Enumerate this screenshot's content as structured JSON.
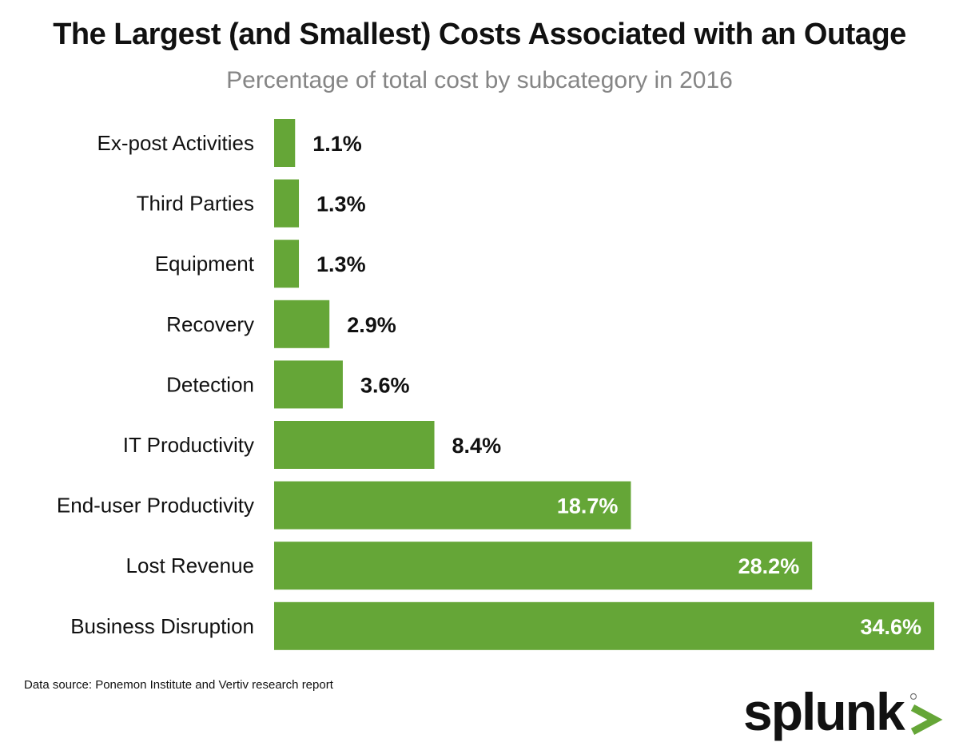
{
  "title": "The Largest (and Smallest) Costs Associated with an Outage",
  "subtitle": "Percentage of total cost by subcategory in 2016",
  "source": "Data source: Ponemon Institute and Vertiv research report",
  "logo": {
    "text": "splunk>",
    "brand_color": "#65a637"
  },
  "colors": {
    "bar": "#65a637",
    "label_outside": "#111111",
    "label_inside": "#ffffff"
  },
  "chart_data": {
    "type": "bar",
    "orientation": "horizontal",
    "title": "The Largest (and Smallest) Costs Associated with an Outage",
    "subtitle": "Percentage of total cost by subcategory in 2016",
    "categories": [
      "Ex-post Activities",
      "Third Parties",
      "Equipment",
      "Recovery",
      "Detection",
      "IT Productivity",
      "End-user Productivity",
      "Lost Revenue",
      "Business Disruption"
    ],
    "values": [
      1.1,
      1.3,
      1.3,
      2.9,
      3.6,
      8.4,
      18.7,
      28.2,
      34.6
    ],
    "data_labels": [
      "1.1%",
      "1.3%",
      "1.3%",
      "2.9%",
      "3.6%",
      "8.4%",
      "18.7%",
      "28.2%",
      "34.6%"
    ],
    "unit": "%",
    "xlim": [
      0,
      34.6
    ],
    "grid": false,
    "legend": "none"
  }
}
